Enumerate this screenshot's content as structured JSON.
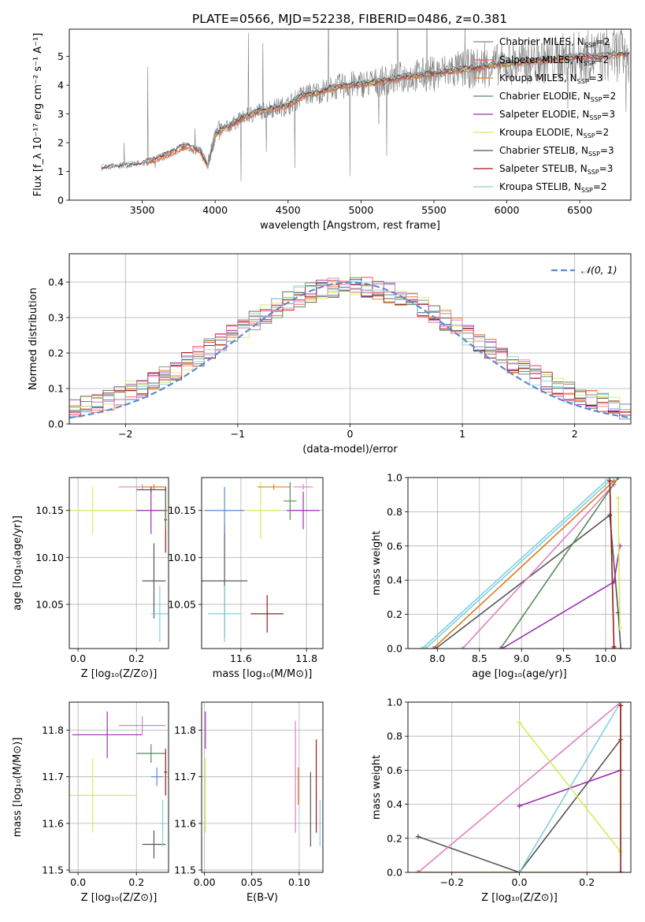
{
  "figure_title": "PLATE=0566, MJD=52238, FIBERID=0486, z=0.381",
  "colors": {
    "chabrier_miles": "#888888",
    "salpeter_miles": "#ff4d4d",
    "kroupa_miles": "#e07b20",
    "chabrier_elodie": "#5a8a5a",
    "salpeter_elodie": "#9b30b0",
    "kroupa_elodie": "#d4ec5c",
    "chabrier_stelib": "#555555",
    "salpeter_stelib": "#a01818",
    "kroupa_stelib": "#80d0e0",
    "pink": "#e080c0",
    "spectrum": "#808080",
    "normal": "#5b8bd0"
  },
  "chart_data": [
    {
      "id": "spectrum",
      "type": "line",
      "xlabel": "wavelength [Angstrom, rest frame]",
      "ylabel": "Flux [f_λ 10⁻¹⁷ erg cm⁻² s⁻¹ A⁻¹]",
      "xlim": [
        3000,
        6850
      ],
      "ylim": [
        0,
        5.95
      ],
      "xticks": [
        3500,
        4000,
        4500,
        5000,
        5500,
        6000,
        6500
      ],
      "yticks": [
        0,
        1,
        2,
        3,
        4,
        5
      ],
      "grid": false,
      "legend_position": "top-right",
      "continuum": {
        "x": [
          3220,
          3400,
          3500,
          3600,
          3700,
          3800,
          3900,
          3950,
          4000,
          4100,
          4200,
          4300,
          4400,
          4500,
          4600,
          4700,
          4800,
          4900,
          5000,
          5100,
          5200,
          5300,
          5400,
          5500,
          5600,
          5700,
          5800,
          5900,
          6000,
          6100,
          6200,
          6300,
          6400,
          6500,
          6600,
          6700,
          6820
        ],
        "y": [
          1.1,
          1.2,
          1.25,
          1.45,
          1.65,
          1.9,
          1.7,
          1.2,
          2.3,
          2.6,
          2.9,
          3.1,
          3.2,
          3.3,
          3.65,
          3.75,
          3.9,
          4.0,
          4.05,
          4.1,
          4.2,
          4.3,
          4.35,
          4.4,
          4.5,
          4.55,
          4.6,
          4.7,
          4.75,
          4.8,
          4.85,
          4.9,
          4.95,
          5.0,
          5.0,
          5.05,
          5.1
        ]
      },
      "legend": [
        "Chabrier MILES, N_SSP=2",
        "Salpeter MILES, N_SSP=2",
        "Kroupa MILES, N_SSP=3",
        "Chabrier ELODIE, N_SSP=2",
        "Salpeter ELODIE, N_SSP=3",
        "Kroupa ELODIE, N_SSP=2",
        "Chabrier STELIB, N_SSP=3",
        "Salpeter STELIB, N_SSP=3",
        "Kroupa STELIB, N_SSP=2"
      ]
    },
    {
      "id": "residuals",
      "type": "line",
      "xlabel": "(data-model)/error",
      "ylabel": "Normed distribution",
      "xlim": [
        -2.5,
        2.5
      ],
      "ylim": [
        0,
        0.48
      ],
      "xticks": [
        -2,
        -1,
        0,
        1,
        2
      ],
      "yticks": [
        0.0,
        0.1,
        0.2,
        0.3,
        0.4
      ],
      "grid": true,
      "legend": [
        "𝒩(0, 1)"
      ],
      "legend_position": "top-right"
    },
    {
      "id": "z_vs_age",
      "type": "scatter",
      "xlabel": "Z [log₁₀(Z/Z⊙)]",
      "ylabel": "age  [log₁₀(age/yr)]",
      "xlim": [
        -0.03,
        0.31
      ],
      "ylim": [
        10.003,
        10.185
      ],
      "xticks": [
        0.0,
        0.2
      ],
      "yticks": [
        10.05,
        10.1,
        10.15
      ],
      "grid": true,
      "points": [
        {
          "x": 0.05,
          "y": 10.15,
          "xerr": 0.3,
          "yerr": 0.025,
          "c": "kroupa_elodie"
        },
        {
          "x": 0.25,
          "y": 10.15,
          "xerr": 0.05,
          "yerr": 0.025,
          "c": "salpeter_elodie"
        },
        {
          "x": 0.22,
          "y": 10.175,
          "xerr": 0.08,
          "yerr": 0.003,
          "c": "pink"
        },
        {
          "x": 0.26,
          "y": 10.175,
          "xerr": 0.04,
          "yerr": 0.003,
          "c": "kroupa_miles"
        },
        {
          "x": 0.25,
          "y": 10.172,
          "xerr": 0.05,
          "yerr": 0.003,
          "c": "chabrier_stelib"
        },
        {
          "x": 0.26,
          "y": 10.075,
          "xerr": 0.04,
          "yerr": 0.04,
          "c": "chabrier_stelib"
        },
        {
          "x": 0.28,
          "y": 10.04,
          "xerr": 0.03,
          "yerr": 0.03,
          "c": "kroupa_stelib"
        },
        {
          "x": 0.3,
          "y": 10.14,
          "xerr": 0.005,
          "yerr": 0.035,
          "c": "salpeter_stelib"
        },
        {
          "x": 0.3,
          "y": 10.15,
          "xerr": 0.005,
          "yerr": 0.02,
          "c": "chabrier_elodie"
        }
      ]
    },
    {
      "id": "mass_vs_age",
      "type": "scatter",
      "xlabel": "mass [log₁₀(M/M⊙)]",
      "ylabel": "",
      "xlim": [
        11.48,
        11.85
      ],
      "ylim": [
        10.003,
        10.185
      ],
      "xticks": [
        11.6,
        11.8
      ],
      "yticks": [
        10.05,
        10.1,
        10.15
      ],
      "grid": true,
      "points": [
        {
          "x": 11.55,
          "y": 10.075,
          "xerr": 0.07,
          "yerr": 0.06,
          "c": "chabrier_stelib"
        },
        {
          "x": 11.55,
          "y": 10.04,
          "xerr": 0.05,
          "yerr": 0.03,
          "c": "kroupa_stelib"
        },
        {
          "x": 11.68,
          "y": 10.04,
          "xerr": 0.05,
          "yerr": 0.02,
          "c": "salpeter_stelib"
        },
        {
          "x": 11.66,
          "y": 10.15,
          "xerr": 0.06,
          "yerr": 0.03,
          "c": "kroupa_elodie"
        },
        {
          "x": 11.7,
          "y": 10.175,
          "xerr": 0.05,
          "yerr": 0.003,
          "c": "kroupa_miles"
        },
        {
          "x": 11.79,
          "y": 10.175,
          "xerr": 0.03,
          "yerr": 0.003,
          "c": "pink"
        },
        {
          "x": 11.79,
          "y": 10.15,
          "xerr": 0.05,
          "yerr": 0.02,
          "c": "salpeter_elodie"
        },
        {
          "x": 11.75,
          "y": 10.16,
          "xerr": 0.02,
          "yerr": 0.02,
          "c": "chabrier_elodie"
        },
        {
          "x": 11.55,
          "y": 10.15,
          "xerr": 0.06,
          "yerr": 0.025,
          "c": "normal"
        }
      ]
    },
    {
      "id": "age_cumulative",
      "type": "line",
      "xlabel": "age  [log₁₀(age/yr)]",
      "ylabel": "mass weight",
      "xlim": [
        7.65,
        10.3
      ],
      "ylim": [
        0,
        1
      ],
      "xticks": [
        8.0,
        8.5,
        9.0,
        9.5,
        10.0
      ],
      "yticks": [
        0.0,
        0.2,
        0.4,
        0.6,
        0.8,
        1.0
      ],
      "grid": true,
      "series": [
        {
          "c": "kroupa_stelib",
          "x": [
            7.82,
            10.05,
            10.15
          ],
          "y": [
            0,
            1.0,
            1.0
          ]
        },
        {
          "c": "kroupa_stelib",
          "x": [
            7.86,
            10.05
          ],
          "y": [
            0,
            0.98
          ]
        },
        {
          "c": "kroupa_miles",
          "x": [
            7.95,
            10.1
          ],
          "y": [
            0,
            0.98
          ]
        },
        {
          "c": "chabrier_stelib",
          "x": [
            7.98,
            10.05,
            10.15,
            10.18
          ],
          "y": [
            0,
            0.78,
            0.21,
            0.0
          ]
        },
        {
          "c": "pink",
          "x": [
            8.3,
            10.1
          ],
          "y": [
            0,
            0.96
          ]
        },
        {
          "c": "chabrier_elodie",
          "x": [
            8.75,
            10.15
          ],
          "y": [
            0,
            1.0
          ]
        },
        {
          "c": "salpeter_elodie",
          "x": [
            8.77,
            10.1,
            10.17
          ],
          "y": [
            0,
            0.39,
            0.6
          ]
        },
        {
          "c": "salpeter_stelib",
          "x": [
            10.05,
            10.1,
            10.1
          ],
          "y": [
            0.98,
            0.01,
            0.0
          ]
        },
        {
          "c": "kroupa_elodie",
          "x": [
            10.15,
            10.17
          ],
          "y": [
            0.88,
            0.12
          ]
        }
      ]
    },
    {
      "id": "z_vs_mass",
      "type": "scatter",
      "xlabel": "Z [log₁₀(Z/Z⊙)]",
      "ylabel": "mass [log₁₀(M/M⊙)]",
      "xlim": [
        -0.03,
        0.31
      ],
      "ylim": [
        11.495,
        11.86
      ],
      "xticks": [
        0.0,
        0.2
      ],
      "yticks": [
        11.5,
        11.6,
        11.7,
        11.8
      ],
      "grid": true,
      "points": [
        {
          "x": 0.1,
          "y": 11.79,
          "xerr": 0.12,
          "yerr": 0.05,
          "c": "salpeter_elodie"
        },
        {
          "x": 0.22,
          "y": 11.81,
          "xerr": 0.08,
          "yerr": 0.02,
          "c": "pink"
        },
        {
          "x": 0.05,
          "y": 11.66,
          "xerr": 0.15,
          "yerr": 0.08,
          "c": "kroupa_elodie"
        },
        {
          "x": 0.25,
          "y": 11.75,
          "xerr": 0.05,
          "yerr": 0.02,
          "c": "chabrier_elodie"
        },
        {
          "x": 0.26,
          "y": 11.555,
          "xerr": 0.04,
          "yerr": 0.03,
          "c": "chabrier_stelib"
        },
        {
          "x": 0.27,
          "y": 11.7,
          "xerr": 0.02,
          "yerr": 0.02,
          "c": "normal"
        },
        {
          "x": 0.3,
          "y": 11.71,
          "xerr": 0.005,
          "yerr": 0.05,
          "c": "salpeter_stelib"
        },
        {
          "x": 0.29,
          "y": 11.6,
          "xerr": 0.01,
          "yerr": 0.05,
          "c": "kroupa_stelib"
        }
      ]
    },
    {
      "id": "ebv_vs_mass",
      "type": "scatter",
      "xlabel": "E(B-V)",
      "ylabel": "",
      "xlim": [
        -0.003,
        0.125
      ],
      "ylim": [
        11.495,
        11.86
      ],
      "xticks": [
        0.0,
        0.05,
        0.1
      ],
      "yticks": [
        11.5,
        11.6,
        11.7,
        11.8
      ],
      "grid": true,
      "points": [
        {
          "x": 0.001,
          "y": 11.8,
          "xerr": 0.0,
          "yerr": 0.04,
          "c": "salpeter_elodie"
        },
        {
          "x": 0.001,
          "y": 11.66,
          "xerr": 0.0,
          "yerr": 0.08,
          "c": "kroupa_elodie"
        },
        {
          "x": 0.096,
          "y": 11.7,
          "xerr": 0.0,
          "yerr": 0.12,
          "c": "pink"
        },
        {
          "x": 0.099,
          "y": 11.68,
          "xerr": 0.0,
          "yerr": 0.04,
          "c": "kroupa_miles"
        },
        {
          "x": 0.112,
          "y": 11.63,
          "xerr": 0.0,
          "yerr": 0.08,
          "c": "chabrier_stelib"
        },
        {
          "x": 0.118,
          "y": 11.68,
          "xerr": 0.0,
          "yerr": 0.1,
          "c": "salpeter_stelib"
        },
        {
          "x": 0.122,
          "y": 11.6,
          "xerr": 0.0,
          "yerr": 0.05,
          "c": "kroupa_stelib"
        }
      ]
    },
    {
      "id": "z_cumulative",
      "type": "line",
      "xlabel": "Z [log₁₀(Z/Z⊙)]",
      "ylabel": "mass weight",
      "xlim": [
        -0.33,
        0.33
      ],
      "ylim": [
        0,
        1
      ],
      "xticks": [
        -0.2,
        0.0,
        0.2
      ],
      "yticks": [
        0.0,
        0.2,
        0.4,
        0.6,
        0.8,
        1.0
      ],
      "grid": true,
      "series": [
        {
          "c": "chabrier_stelib",
          "x": [
            -0.3,
            0.0,
            0.3,
            0.3
          ],
          "y": [
            0.21,
            0.0,
            0.78,
            1.0
          ]
        },
        {
          "c": "pink",
          "x": [
            -0.3,
            0.3
          ],
          "y": [
            0.0,
            1.0
          ]
        },
        {
          "c": "kroupa_stelib",
          "x": [
            0.0,
            0.3
          ],
          "y": [
            0.0,
            1.0
          ]
        },
        {
          "c": "salpeter_elodie",
          "x": [
            0.0,
            0.3,
            0.3
          ],
          "y": [
            0.39,
            0.6,
            1.0
          ]
        },
        {
          "c": "kroupa_elodie",
          "x": [
            0.0,
            0.3,
            0.3
          ],
          "y": [
            0.88,
            0.12,
            1.0
          ]
        },
        {
          "c": "kroupa_miles",
          "x": [
            -0.3,
            0.3
          ],
          "y": [
            0.0,
            0.0
          ]
        },
        {
          "c": "salpeter_stelib",
          "x": [
            0.3,
            0.3
          ],
          "y": [
            0.0,
            0.98
          ]
        }
      ]
    }
  ]
}
